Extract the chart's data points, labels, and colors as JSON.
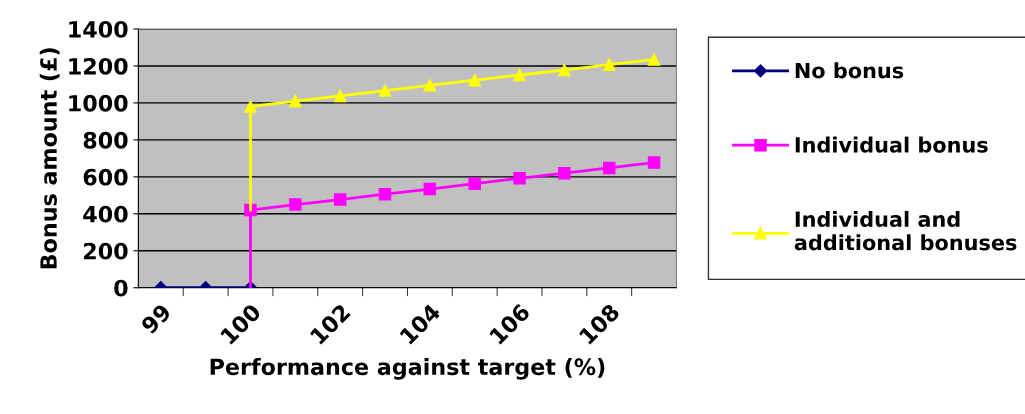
{
  "chart_data": {
    "type": "line",
    "xlabel": "Performance against target (%)",
    "ylabel": "Bonus amount (£)",
    "categories": [
      "99",
      null,
      "100",
      null,
      "102",
      null,
      "104",
      null,
      "106",
      null,
      "108",
      null
    ],
    "series": [
      {
        "name": "No bonus",
        "color": "#000080",
        "marker": "diamond",
        "values": [
          0,
          0,
          0,
          null,
          null,
          null,
          null,
          null,
          null,
          null,
          null,
          null
        ]
      },
      {
        "name": "Individual bonus",
        "color": "#ff00ff",
        "marker": "square",
        "values": [
          null,
          null,
          420,
          450,
          477,
          506,
          534,
          563,
          592,
          620,
          648,
          677
        ],
        "errors": [
          null,
          null,
          [
            0,
            420
          ],
          null,
          null,
          null,
          null,
          null,
          null,
          null,
          null,
          null
        ]
      },
      {
        "name": "Individual and additional bonuses",
        "color": "#ffff00",
        "marker": "triangle",
        "values": [
          null,
          null,
          980,
          1010,
          1038,
          1067,
          1095,
          1123,
          1151,
          1178,
          1207,
          1235
        ],
        "errors": [
          null,
          null,
          [
            420,
            980
          ],
          null,
          null,
          null,
          null,
          null,
          null,
          null,
          null,
          null
        ]
      }
    ],
    "ylim": [
      0,
      1400
    ],
    "yticks": [
      0,
      200,
      400,
      600,
      800,
      1000,
      1200,
      1400
    ],
    "grid": "y",
    "legend": "right"
  }
}
